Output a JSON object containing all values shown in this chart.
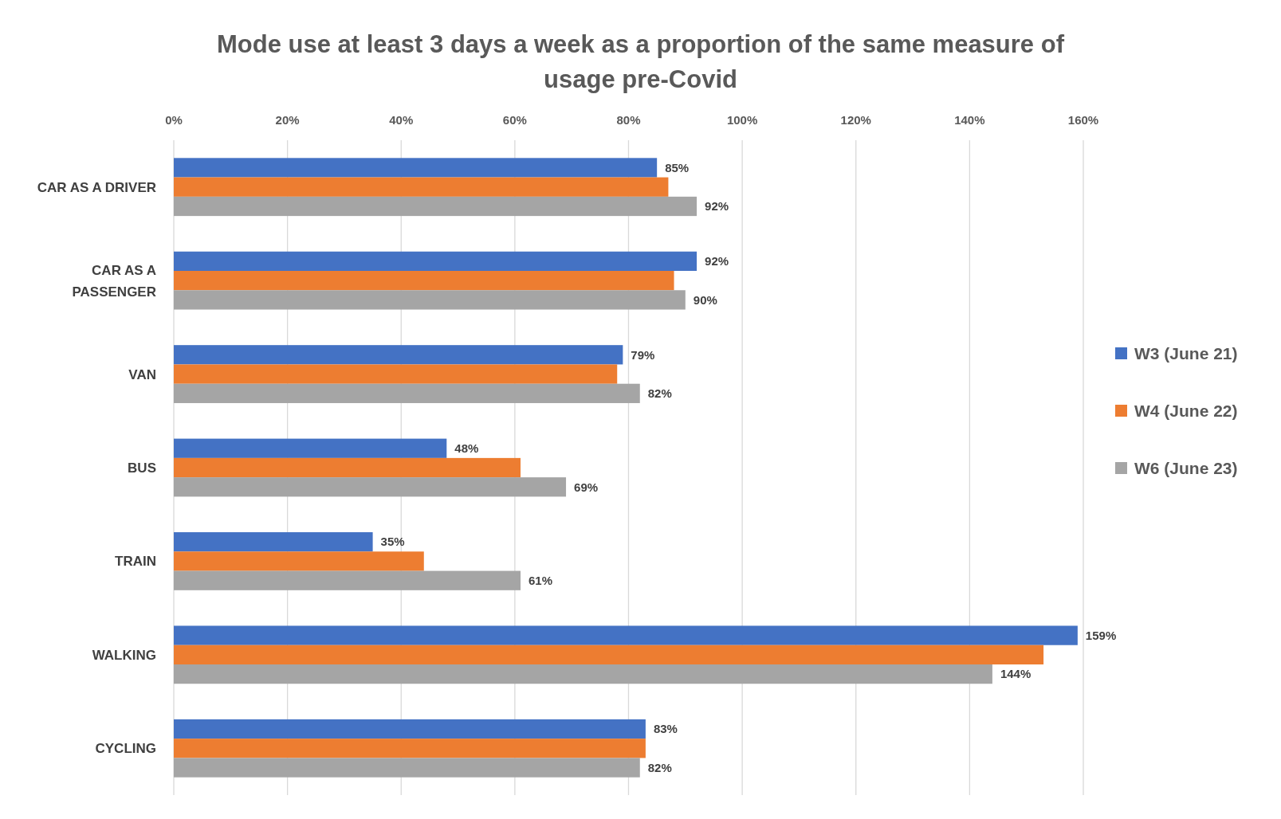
{
  "chart_data": {
    "type": "bar",
    "orientation": "horizontal",
    "title": "Mode use at least 3 days a week as a proportion of the same measure of usage pre-Covid",
    "categories": [
      "CAR AS A DRIVER",
      "CAR AS A PASSENGER",
      "VAN",
      "BUS",
      "TRAIN",
      "WALKING",
      "CYCLING"
    ],
    "series": [
      {
        "name": "W3 (June 21)",
        "color": "#4472c4",
        "values": [
          85,
          92,
          79,
          48,
          35,
          159,
          83
        ],
        "value_labels": [
          "85%",
          "92%",
          "79%",
          "48%",
          "35%",
          "159%",
          "83%"
        ]
      },
      {
        "name": "W4 (June 22)",
        "color": "#ed7d31",
        "values": [
          87,
          88,
          78,
          61,
          44,
          153,
          83
        ]
      },
      {
        "name": "W6 (June 23)",
        "color": "#a5a5a5",
        "values": [
          92,
          90,
          82,
          69,
          61,
          144,
          82
        ],
        "value_labels": [
          "92%",
          "90%",
          "82%",
          "69%",
          "61%",
          "144%",
          "82%"
        ]
      }
    ],
    "xlim": [
      0,
      160
    ],
    "xticks": [
      {
        "value": 0,
        "label": "0%"
      },
      {
        "value": 20,
        "label": "20%"
      },
      {
        "value": 40,
        "label": "40%"
      },
      {
        "value": 60,
        "label": "60%"
      },
      {
        "value": 80,
        "label": "80%"
      },
      {
        "value": 100,
        "label": "100%"
      },
      {
        "value": 120,
        "label": "120%"
      },
      {
        "value": 140,
        "label": "140%"
      },
      {
        "value": 160,
        "label": "160%"
      }
    ],
    "grid": "x",
    "legend": "right"
  }
}
